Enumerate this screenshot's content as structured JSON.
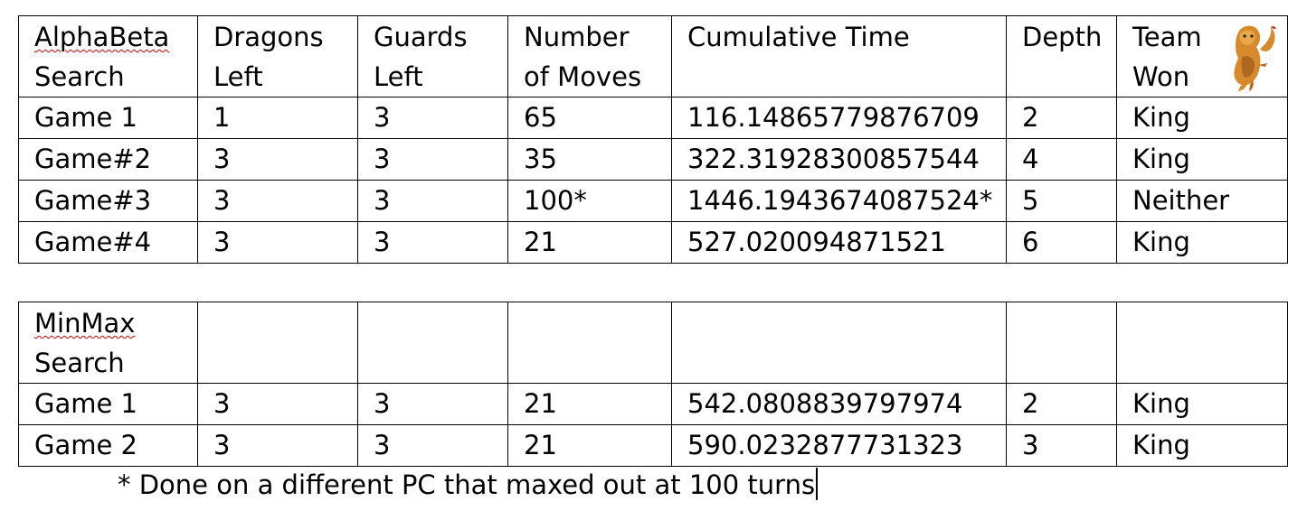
{
  "tables": [
    {
      "header": [
        [
          "AlphaBeta",
          "Search"
        ],
        [
          "Dragons",
          "Left"
        ],
        [
          "Guards",
          "Left"
        ],
        [
          "Number",
          "of Moves"
        ],
        [
          "Cumulative Time",
          ""
        ],
        [
          "Depth",
          ""
        ],
        [
          "Team",
          "Won"
        ]
      ],
      "rows": [
        [
          "Game 1",
          "1",
          "3",
          "65",
          "116.14865779876709",
          "2",
          "King"
        ],
        [
          "Game#2",
          "3",
          "3",
          "35",
          "322.31928300857544",
          "4",
          "King"
        ],
        [
          "Game#3",
          "3",
          "3",
          "100*",
          "1446.1943674087524*",
          "5",
          "Neither"
        ],
        [
          "Game#4",
          "3",
          "3",
          "21",
          "527.020094871521",
          "6",
          "King"
        ]
      ]
    },
    {
      "header": [
        [
          "MinMax",
          "Search"
        ],
        [
          "",
          ""
        ],
        [
          "",
          ""
        ],
        [
          "",
          ""
        ],
        [
          "",
          ""
        ],
        [
          "",
          ""
        ],
        [
          "",
          ""
        ]
      ],
      "rows": [
        [
          "Game 1",
          "3",
          "3",
          "21",
          "542.0808839797974",
          "2",
          "King"
        ],
        [
          "Game 2",
          "3",
          "3",
          "21",
          "590.0232877731323",
          "3",
          "King"
        ]
      ]
    }
  ],
  "footnote": "* Done on a different PC that maxed out at 100 turns",
  "icons": {
    "mascot": "lion-mascot-icon"
  },
  "colors": {
    "spellcheck_underline": "#d20000",
    "mascot_main": "#d68a2c",
    "mascot_shadow": "#8a4a1a"
  }
}
